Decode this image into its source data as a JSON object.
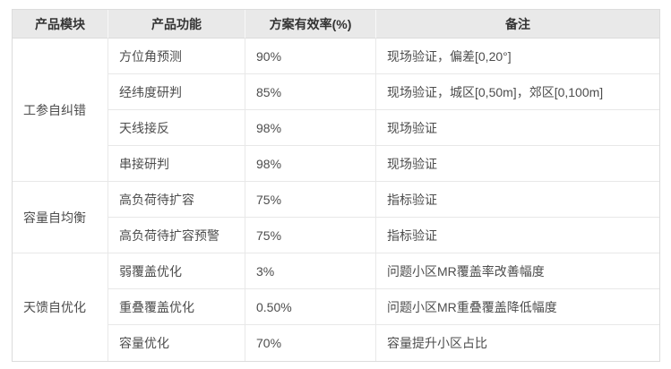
{
  "table": {
    "headers": [
      "产品模块",
      "产品功能",
      "方案有效率(%)",
      "备注"
    ],
    "modules": [
      {
        "name": "工参自纠错",
        "rows": [
          {
            "function": "方位角预测",
            "rate": "90%",
            "remark": "现场验证，偏差[0,20°]"
          },
          {
            "function": "经纬度研判",
            "rate": "85%",
            "remark": "现场验证，城区[0,50m]，郊区[0,100m]"
          },
          {
            "function": "天线接反",
            "rate": "98%",
            "remark": "现场验证"
          },
          {
            "function": "串接研判",
            "rate": "98%",
            "remark": "现场验证"
          }
        ]
      },
      {
        "name": "容量自均衡",
        "rows": [
          {
            "function": "高负荷待扩容",
            "rate": "75%",
            "remark": "指标验证"
          },
          {
            "function": "高负荷待扩容预警",
            "rate": "75%",
            "remark": "指标验证"
          }
        ]
      },
      {
        "name": "天馈自优化",
        "rows": [
          {
            "function": "弱覆盖优化",
            "rate": "3%",
            "remark": "问题小区MR覆盖率改善幅度"
          },
          {
            "function": "重叠覆盖优化",
            "rate": "0.50%",
            "remark": "问题小区MR重叠覆盖降低幅度"
          },
          {
            "function": "容量优化",
            "rate": "70%",
            "remark": "容量提升小区占比"
          }
        ]
      }
    ],
    "colors": {
      "header_bg": "#e9e9e9",
      "outer_border": "#dcdcdc",
      "inner_border": "#e8e8e8",
      "header_text": "#333333",
      "body_text": "#4d4d4d"
    }
  }
}
